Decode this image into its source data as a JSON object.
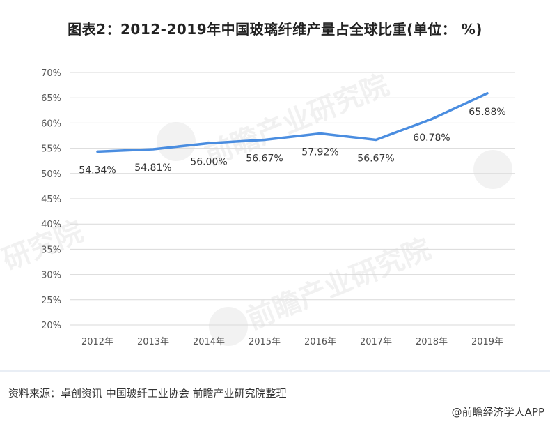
{
  "title": "图表2：2012-2019年中国玻璃纤维产量占全球比重(单位： %)",
  "source": "资料来源：卓创资讯 中国玻纤工业协会 前瞻产业研究院整理",
  "brand": "@前瞻经济学人APP",
  "colors": {
    "line": "#4a8de0",
    "grid": "#d9d9d9",
    "axis_text": "#555555",
    "label_text": "#333333"
  },
  "chart_data": {
    "type": "line",
    "title": "图表2：2012-2019年中国玻璃纤维产量占全球比重(单位： %)",
    "xlabel": "",
    "ylabel": "",
    "categories": [
      "2012年",
      "2013年",
      "2014年",
      "2015年",
      "2016年",
      "2017年",
      "2018年",
      "2019年"
    ],
    "series": [
      {
        "values": [
          54.34,
          54.81,
          56.0,
          56.67,
          57.92,
          56.67,
          60.78,
          65.88
        ],
        "labels": [
          "54.34%",
          "54.81%",
          "56.00%",
          "56.67%",
          "57.92%",
          "56.67%",
          "60.78%",
          "65.88%"
        ]
      }
    ],
    "ylim": [
      20,
      70
    ],
    "yticks": [
      20,
      25,
      30,
      35,
      40,
      45,
      50,
      55,
      60,
      65,
      70
    ],
    "ytick_labels": [
      "20%",
      "25%",
      "30%",
      "35%",
      "40%",
      "45%",
      "50%",
      "55%",
      "60%",
      "65%",
      "70%"
    ],
    "grid": true,
    "legend": "none"
  }
}
